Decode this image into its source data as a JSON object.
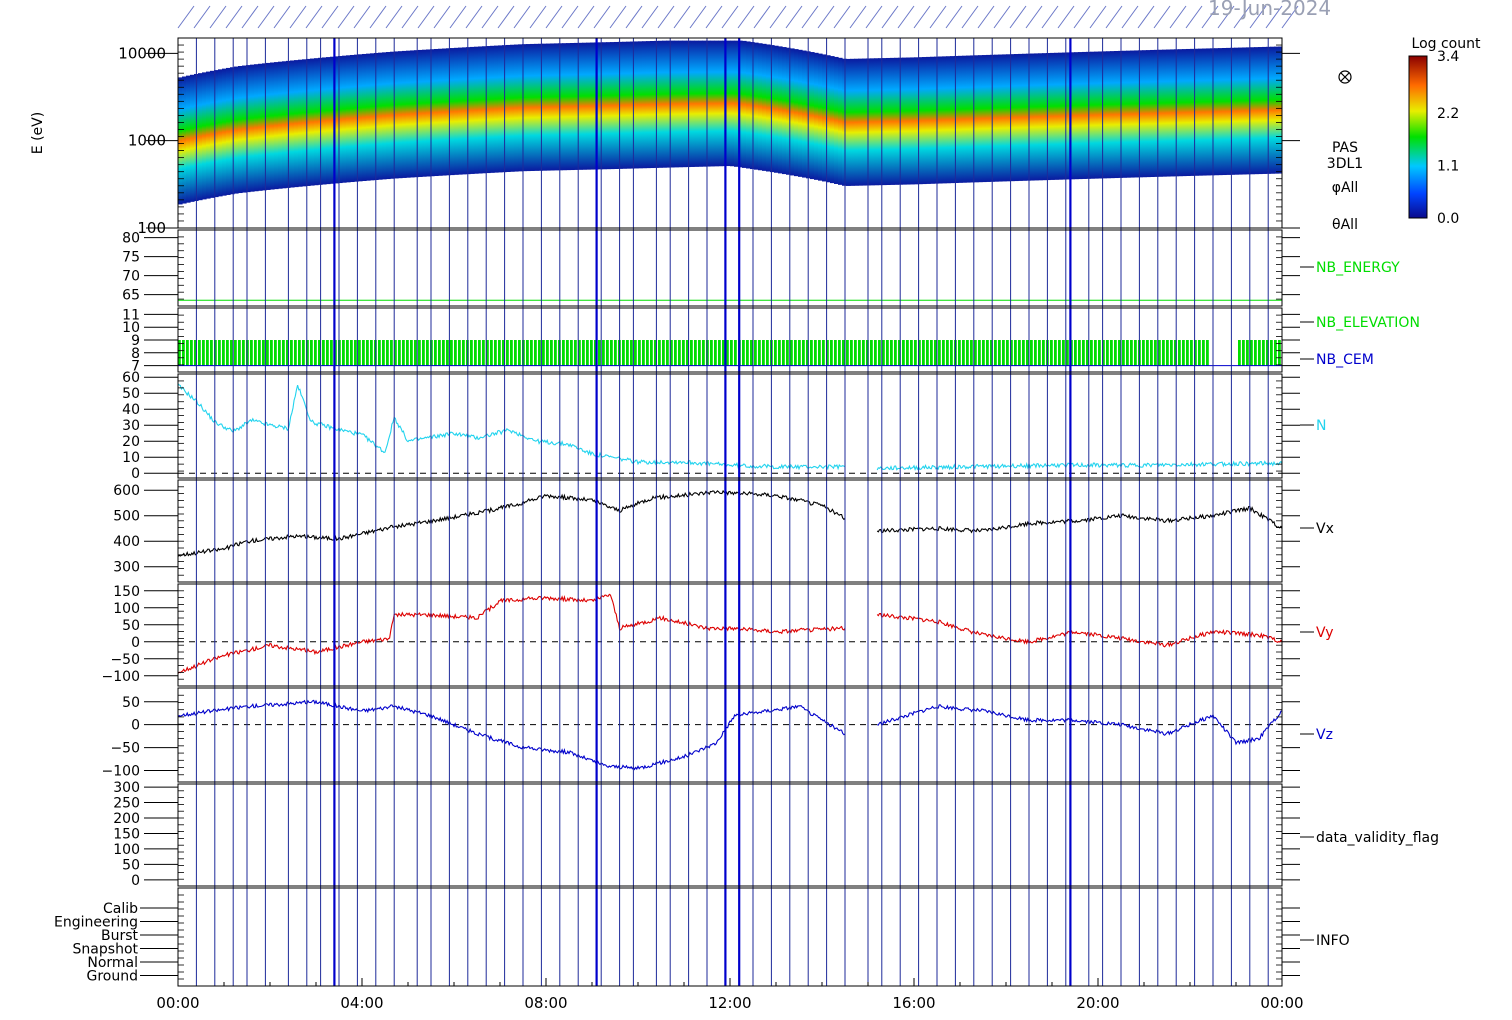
{
  "header": {
    "date_label": "19-Jun-2024"
  },
  "chart_data": {
    "type": "line",
    "x_axis": {
      "ticks": [
        "00:00",
        "04:00",
        "08:00",
        "12:00",
        "16:00",
        "20:00",
        "00:00"
      ],
      "range_hours": [
        0,
        24
      ]
    },
    "marker_vlines_hours": [
      0.4,
      0.8,
      1.2,
      1.5,
      1.9,
      2.4,
      2.8,
      3.1,
      3.5,
      3.9,
      4.3,
      4.7,
      5.2,
      5.5,
      5.9,
      6.3,
      6.7,
      7.1,
      7.5,
      7.9,
      8.3,
      8.7,
      9.2,
      9.6,
      9.9,
      10.4,
      10.7,
      11.1,
      11.5,
      12.5,
      12.9,
      13.3,
      13.7,
      14.1,
      14.5,
      15.0,
      15.3,
      15.7,
      16.1,
      16.5,
      16.9,
      17.3,
      17.7,
      18.1,
      18.5,
      18.9,
      19.3,
      19.8,
      20.1,
      20.5,
      20.9,
      21.3,
      21.7,
      22.1,
      22.5,
      22.9,
      23.3,
      23.7
    ],
    "highlight_vlines_hours": [
      3.4,
      9.1,
      11.9,
      12.2,
      19.4
    ],
    "panels": [
      {
        "id": "spectrogram",
        "type": "heatmap",
        "ylabel": "E (eV)",
        "y_scale": "log",
        "y_range": [
          100,
          15000
        ],
        "y_ticks": [
          "10000",
          "1000",
          "100"
        ],
        "right_labels": [
          "PAS",
          "3DL1",
          "φAll",
          "θAll"
        ],
        "colorbar": {
          "title": "Log count",
          "ticks": [
            "3.4",
            "2.2",
            "1.1",
            "0.0"
          ],
          "range": [
            0.0,
            3.4
          ]
        },
        "peak_energy_ev": [
          [
            0,
            700
          ],
          [
            1.3,
            950
          ],
          [
            4.7,
            1400
          ],
          [
            7.5,
            1700
          ],
          [
            9.5,
            1800
          ],
          [
            12,
            1950
          ],
          [
            14.5,
            1150
          ],
          [
            16,
            1200
          ],
          [
            24,
            1600
          ]
        ]
      },
      {
        "id": "nb-energy",
        "y_range": [
          62,
          82
        ],
        "y_ticks": [
          "80",
          "75",
          "70",
          "65"
        ],
        "series": [
          {
            "name": "NB_ENERGY",
            "color": "#00dd00",
            "constant": 63.5
          }
        ]
      },
      {
        "id": "nb-elevation",
        "y_range": [
          6.5,
          11.5
        ],
        "y_ticks": [
          "11",
          "10",
          "9",
          "8",
          "7"
        ],
        "series": [
          {
            "name": "NB_ELEVATION",
            "color": "#00dd00"
          },
          {
            "name": "NB_CEM",
            "color": "#0000cc"
          }
        ],
        "band_range": [
          7,
          9
        ],
        "gaps_hours": [
          [
            22.4,
            23.0
          ]
        ]
      },
      {
        "id": "density",
        "y_range": [
          -3,
          62
        ],
        "y_ticks": [
          "60",
          "50",
          "40",
          "30",
          "20",
          "10",
          "0"
        ],
        "series": [
          {
            "name": "N",
            "color": "#22d3ee",
            "points": [
              [
                0,
                55
              ],
              [
                0.4,
                45
              ],
              [
                0.8,
                32
              ],
              [
                1.2,
                26
              ],
              [
                1.6,
                33
              ],
              [
                2.0,
                30
              ],
              [
                2.4,
                28
              ],
              [
                2.6,
                55
              ],
              [
                2.9,
                32
              ],
              [
                3.4,
                28
              ],
              [
                4.0,
                24
              ],
              [
                4.5,
                13
              ],
              [
                4.7,
                35
              ],
              [
                5.0,
                20
              ],
              [
                6.0,
                25
              ],
              [
                6.5,
                22
              ],
              [
                7.2,
                27
              ],
              [
                7.8,
                20
              ],
              [
                8.5,
                18
              ],
              [
                9.0,
                12
              ],
              [
                10.0,
                7
              ],
              [
                11.0,
                7
              ],
              [
                12.0,
                5
              ],
              [
                13.0,
                4
              ],
              [
                14.5,
                4
              ]
            ],
            "points2": [
              [
                15.2,
                3
              ],
              [
                17,
                4
              ],
              [
                19,
                5
              ],
              [
                21,
                5
              ],
              [
                23,
                6
              ],
              [
                24,
                6
              ]
            ]
          }
        ]
      },
      {
        "id": "vx",
        "y_range": [
          240,
          640
        ],
        "y_ticks": [
          "600",
          "500",
          "400",
          "300"
        ],
        "series": [
          {
            "name": "Vx",
            "color": "#000000",
            "points": [
              [
                0,
                345
              ],
              [
                1.0,
                370
              ],
              [
                1.5,
                400
              ],
              [
                2.5,
                420
              ],
              [
                3.5,
                410
              ],
              [
                4.5,
                450
              ],
              [
                5.5,
                480
              ],
              [
                6.5,
                510
              ],
              [
                7.5,
                550
              ],
              [
                8.0,
                580
              ],
              [
                9.0,
                560
              ],
              [
                9.6,
                520
              ],
              [
                10.3,
                570
              ],
              [
                11.0,
                580
              ],
              [
                11.7,
                595
              ],
              [
                12.0,
                590
              ],
              [
                13.0,
                580
              ],
              [
                14.0,
                540
              ],
              [
                14.5,
                490
              ]
            ],
            "points2": [
              [
                15.2,
                440
              ],
              [
                16.5,
                450
              ],
              [
                17.5,
                440
              ],
              [
                18.5,
                470
              ],
              [
                19.5,
                480
              ],
              [
                20.5,
                500
              ],
              [
                21.5,
                480
              ],
              [
                22.5,
                500
              ],
              [
                23.3,
                530
              ],
              [
                24,
                450
              ]
            ]
          }
        ]
      },
      {
        "id": "vy",
        "y_range": [
          -130,
          170
        ],
        "y_ticks": [
          "150",
          "100",
          "50",
          "0",
          "−50",
          "−100"
        ],
        "series": [
          {
            "name": "Vy",
            "color": "#dd0000",
            "points": [
              [
                0,
                -90
              ],
              [
                1,
                -40
              ],
              [
                2,
                -10
              ],
              [
                3,
                -30
              ],
              [
                4,
                0
              ],
              [
                4.6,
                10
              ],
              [
                4.7,
                80
              ],
              [
                5.5,
                80
              ],
              [
                6.5,
                70
              ],
              [
                7.0,
                120
              ],
              [
                8.0,
                130
              ],
              [
                9.0,
                120
              ],
              [
                9.4,
                140
              ],
              [
                9.6,
                40
              ],
              [
                10.5,
                70
              ],
              [
                11.5,
                40
              ],
              [
                12.0,
                40
              ],
              [
                13.0,
                30
              ],
              [
                14.5,
                40
              ]
            ],
            "points2": [
              [
                15.2,
                80
              ],
              [
                16.5,
                60
              ],
              [
                17.5,
                20
              ],
              [
                18.5,
                0
              ],
              [
                19.5,
                30
              ],
              [
                20.5,
                10
              ],
              [
                21.5,
                -10
              ],
              [
                22.5,
                30
              ],
              [
                23.5,
                20
              ],
              [
                24,
                0
              ]
            ]
          }
        ]
      },
      {
        "id": "vz",
        "y_range": [
          -125,
          80
        ],
        "y_ticks": [
          "50",
          "0",
          "−50",
          "−100"
        ],
        "series": [
          {
            "name": "Vz",
            "color": "#0000cc",
            "points": [
              [
                0,
                20
              ],
              [
                1.5,
                40
              ],
              [
                3,
                50
              ],
              [
                4,
                30
              ],
              [
                4.7,
                40
              ],
              [
                5.5,
                20
              ],
              [
                6.5,
                -20
              ],
              [
                7.5,
                -50
              ],
              [
                8.5,
                -60
              ],
              [
                9.3,
                -90
              ],
              [
                10.0,
                -95
              ],
              [
                11,
                -70
              ],
              [
                11.7,
                -40
              ],
              [
                12.1,
                20
              ],
              [
                13.5,
                40
              ],
              [
                14.5,
                -20
              ]
            ],
            "points2": [
              [
                15.2,
                0
              ],
              [
                16.5,
                40
              ],
              [
                17.5,
                30
              ],
              [
                18.5,
                10
              ],
              [
                19.5,
                10
              ],
              [
                20.5,
                0
              ],
              [
                21.5,
                -20
              ],
              [
                22.5,
                20
              ],
              [
                23.0,
                -40
              ],
              [
                23.5,
                -30
              ],
              [
                24,
                30
              ]
            ]
          }
        ]
      },
      {
        "id": "validity",
        "y_range": [
          -20,
          310
        ],
        "y_ticks": [
          "300",
          "250",
          "200",
          "150",
          "100",
          "50",
          "0"
        ],
        "series": [
          {
            "name": "data_validity_flag",
            "color": "#000000"
          }
        ]
      },
      {
        "id": "info",
        "y_ticks": [
          "Calib",
          "Engineering",
          "Burst",
          "Snapshot",
          "Normal",
          "Ground"
        ],
        "series": [
          {
            "name": "INFO",
            "color": "#000000"
          }
        ]
      }
    ]
  }
}
